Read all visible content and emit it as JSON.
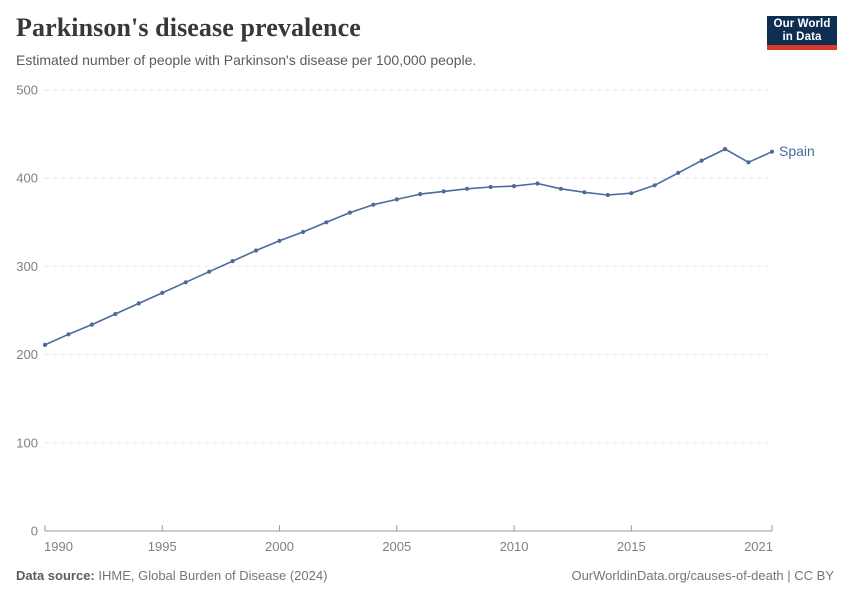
{
  "header": {
    "title": "Parkinson's disease prevalence",
    "subtitle": "Estimated number of people with Parkinson's disease per 100,000 people.",
    "logo": {
      "line1": "Our World",
      "line2": "in Data"
    }
  },
  "chart_data": {
    "type": "line",
    "title": "Parkinson's disease prevalence",
    "subtitle": "Estimated number of people with Parkinson's disease per 100,000 people.",
    "xlabel": "",
    "ylabel": "",
    "xlim": [
      1990,
      2021
    ],
    "ylim": [
      0,
      500
    ],
    "x_ticks": [
      1990,
      1995,
      2000,
      2005,
      2010,
      2015,
      2021
    ],
    "y_ticks": [
      0,
      100,
      200,
      300,
      400,
      500
    ],
    "grid": "horizontal-dashed",
    "legend_position": "end-of-line",
    "series": [
      {
        "name": "Spain",
        "color": "#4c6a9c",
        "x": [
          1990,
          1991,
          1992,
          1993,
          1994,
          1995,
          1996,
          1997,
          1998,
          1999,
          2000,
          2001,
          2002,
          2003,
          2004,
          2005,
          2006,
          2007,
          2008,
          2009,
          2010,
          2011,
          2012,
          2013,
          2014,
          2015,
          2016,
          2017,
          2018,
          2019,
          2020,
          2021
        ],
        "values": [
          211,
          223,
          234,
          246,
          258,
          270,
          282,
          294,
          306,
          318,
          329,
          339,
          350,
          361,
          370,
          376,
          382,
          385,
          388,
          390,
          391,
          394,
          388,
          384,
          381,
          383,
          392,
          406,
          420,
          433,
          418,
          430
        ]
      }
    ]
  },
  "footer": {
    "source_label": "Data source:",
    "source_text": "IHME, Global Burden of Disease (2024)",
    "right_text": "OurWorldinData.org/causes-of-death | CC BY"
  },
  "colors": {
    "line": "#4c6a9c",
    "grid": "#e6e6e6",
    "axis": "#9a9a9a",
    "tick_text": "#818181"
  }
}
